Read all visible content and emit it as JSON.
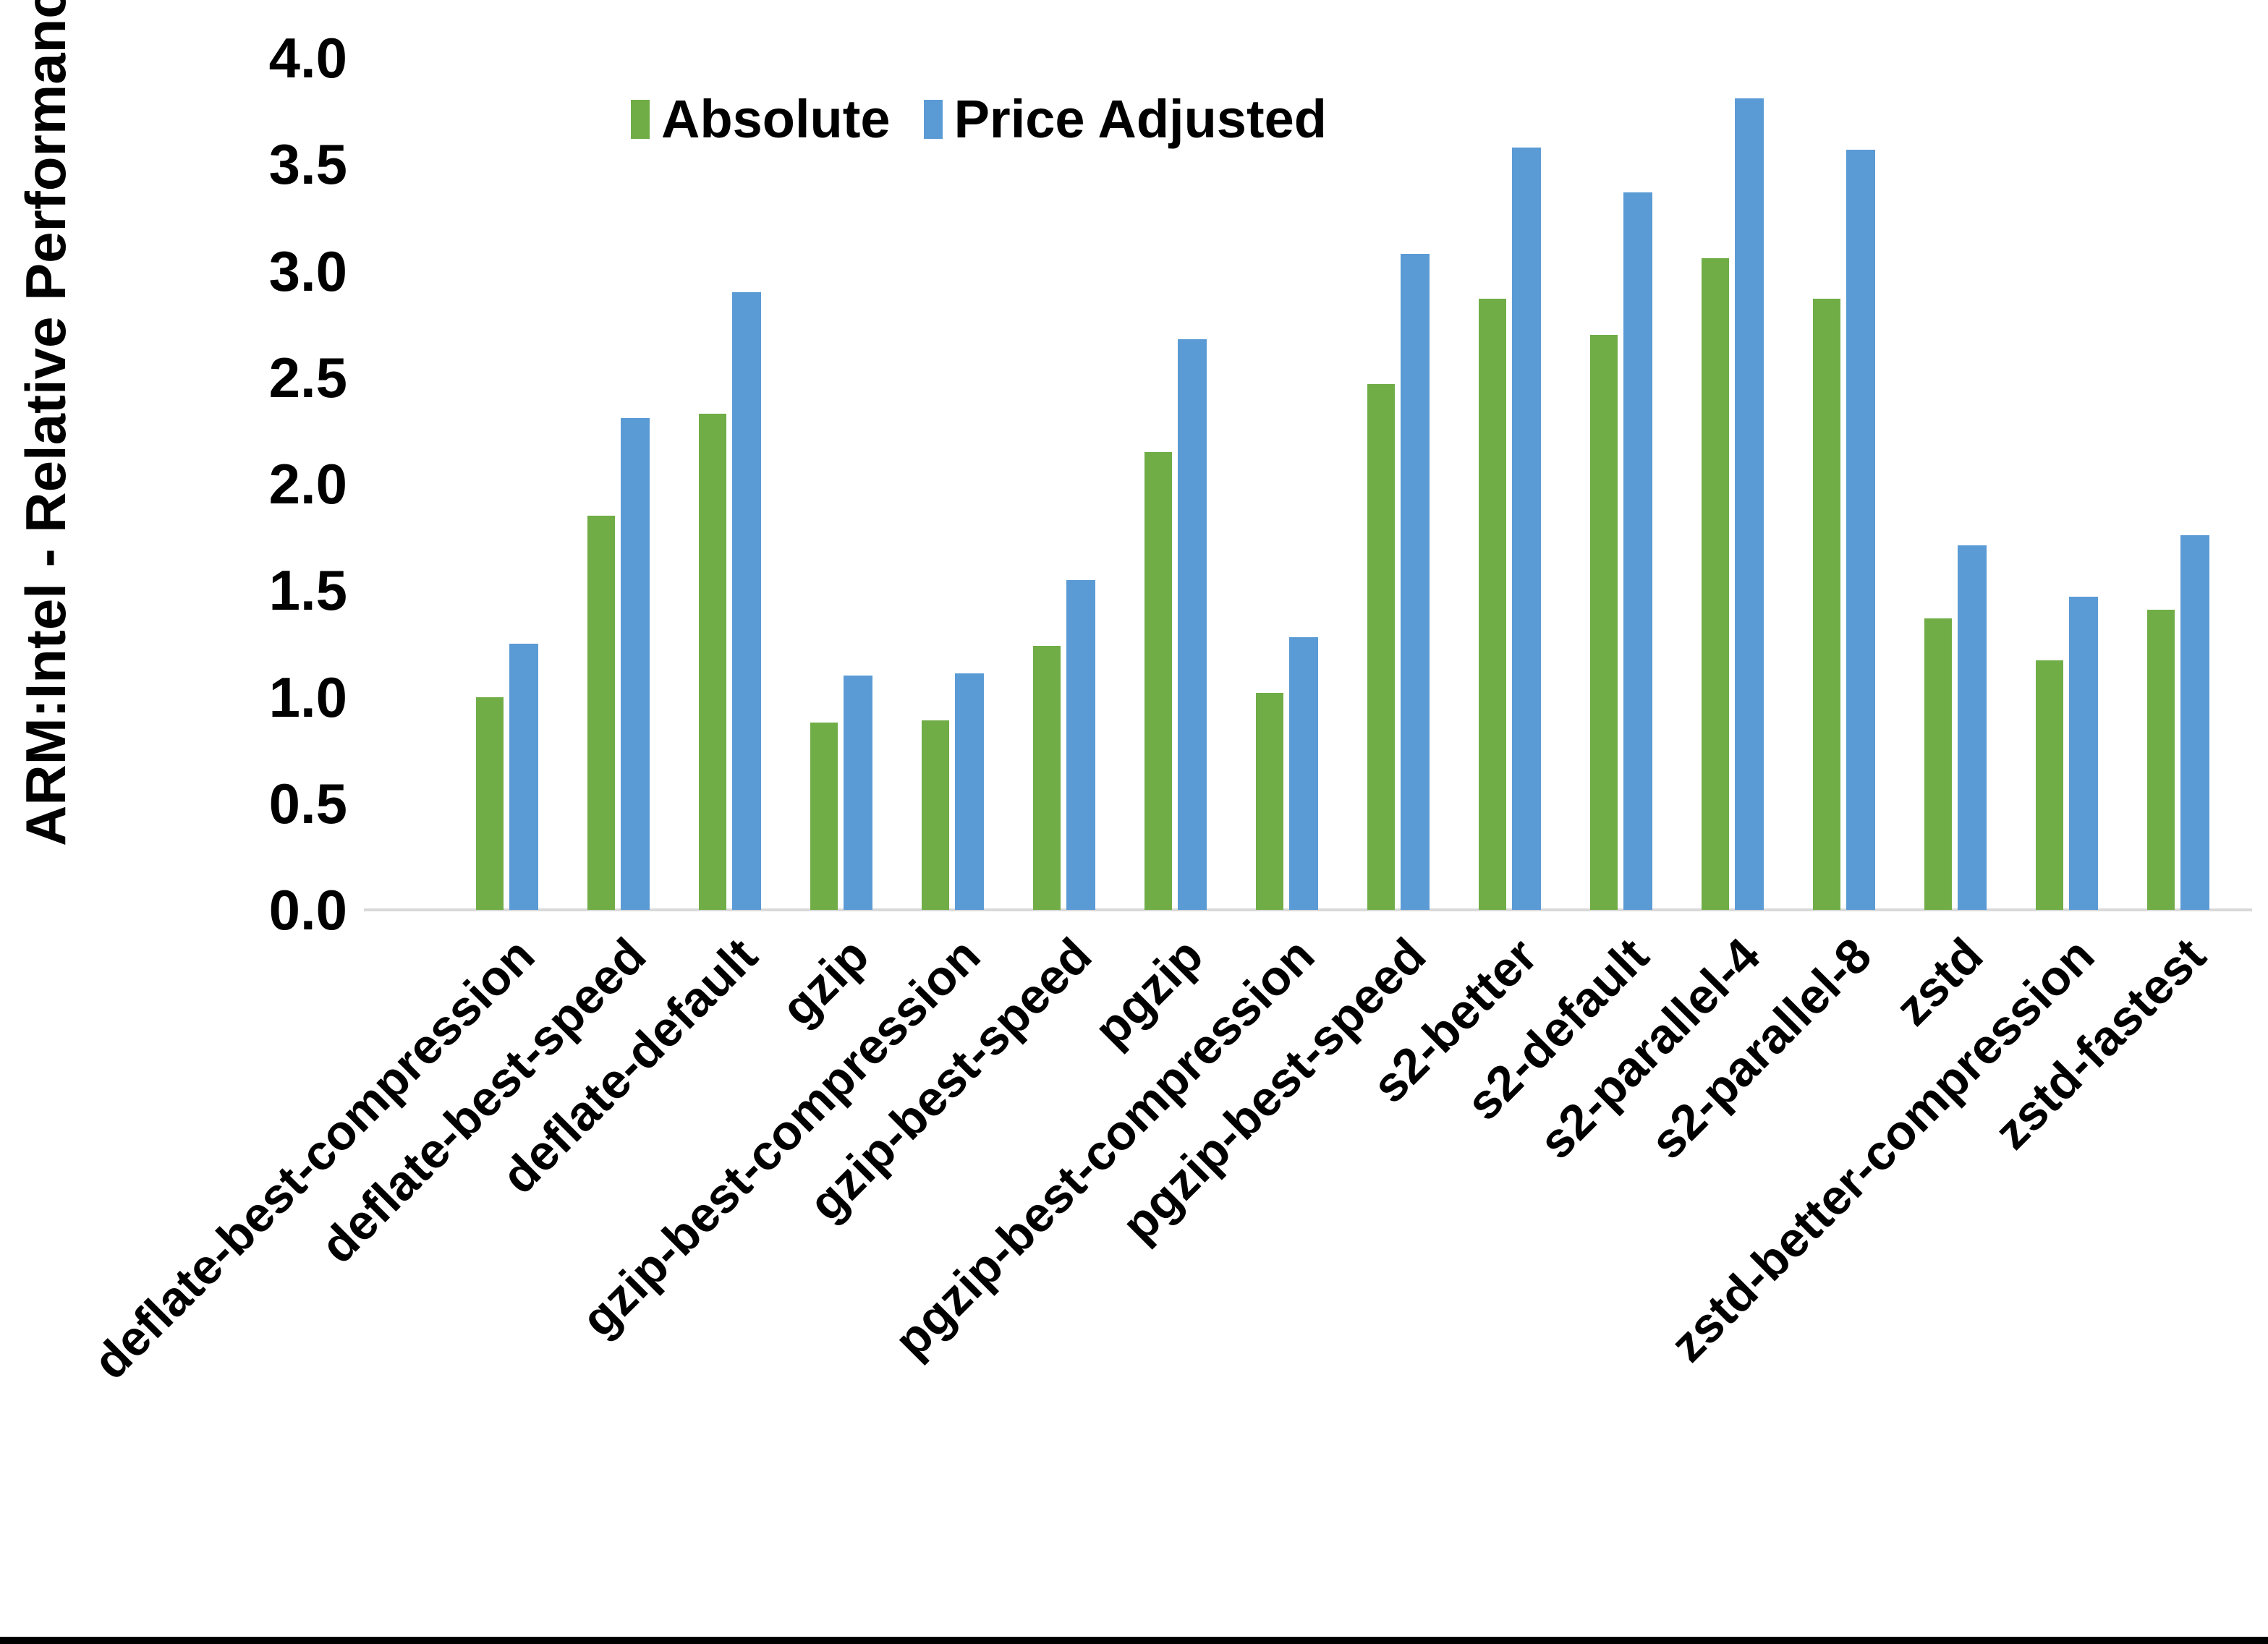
{
  "chart_data": {
    "type": "bar",
    "title": "",
    "xlabel": "",
    "ylabel": "ARM:Intel - Relative Performance",
    "ylim": [
      0.0,
      4.0
    ],
    "ytick_step": 0.5,
    "yticks": [
      "0.0",
      "0.5",
      "1.0",
      "1.5",
      "2.0",
      "2.5",
      "3.0",
      "3.5",
      "4.0"
    ],
    "grid": false,
    "legend_position": "top-left-of-center",
    "categories": [
      "deflate-best-compression",
      "deflate-best-speed",
      "deflate-default",
      "gzip",
      "gzip-best-compression",
      "gzip-best-speed",
      "pgzip",
      "pgzip-best-compression",
      "pgzip-best-speed",
      "s2-better",
      "s2-default",
      "s2-parallel-4",
      "s2-parallel-8",
      "zstd",
      "zstd-better-compression",
      "zstd-fastest"
    ],
    "series": [
      {
        "name": "Absolute",
        "color": "#70AD47",
        "values": [
          1.0,
          1.85,
          2.33,
          0.88,
          0.89,
          1.24,
          2.15,
          1.02,
          2.47,
          2.87,
          2.7,
          3.06,
          2.87,
          1.37,
          1.17,
          1.41
        ]
      },
      {
        "name": "Price Adjusted",
        "color": "#5B9BD5",
        "values": [
          1.25,
          2.31,
          2.9,
          1.1,
          1.11,
          1.55,
          2.68,
          1.28,
          3.08,
          3.58,
          3.37,
          3.81,
          3.57,
          1.71,
          1.47,
          1.76
        ]
      }
    ]
  },
  "colors": {
    "axis_line": "#d9d9d9",
    "text": "#000000",
    "bottom_border": "#000000"
  }
}
